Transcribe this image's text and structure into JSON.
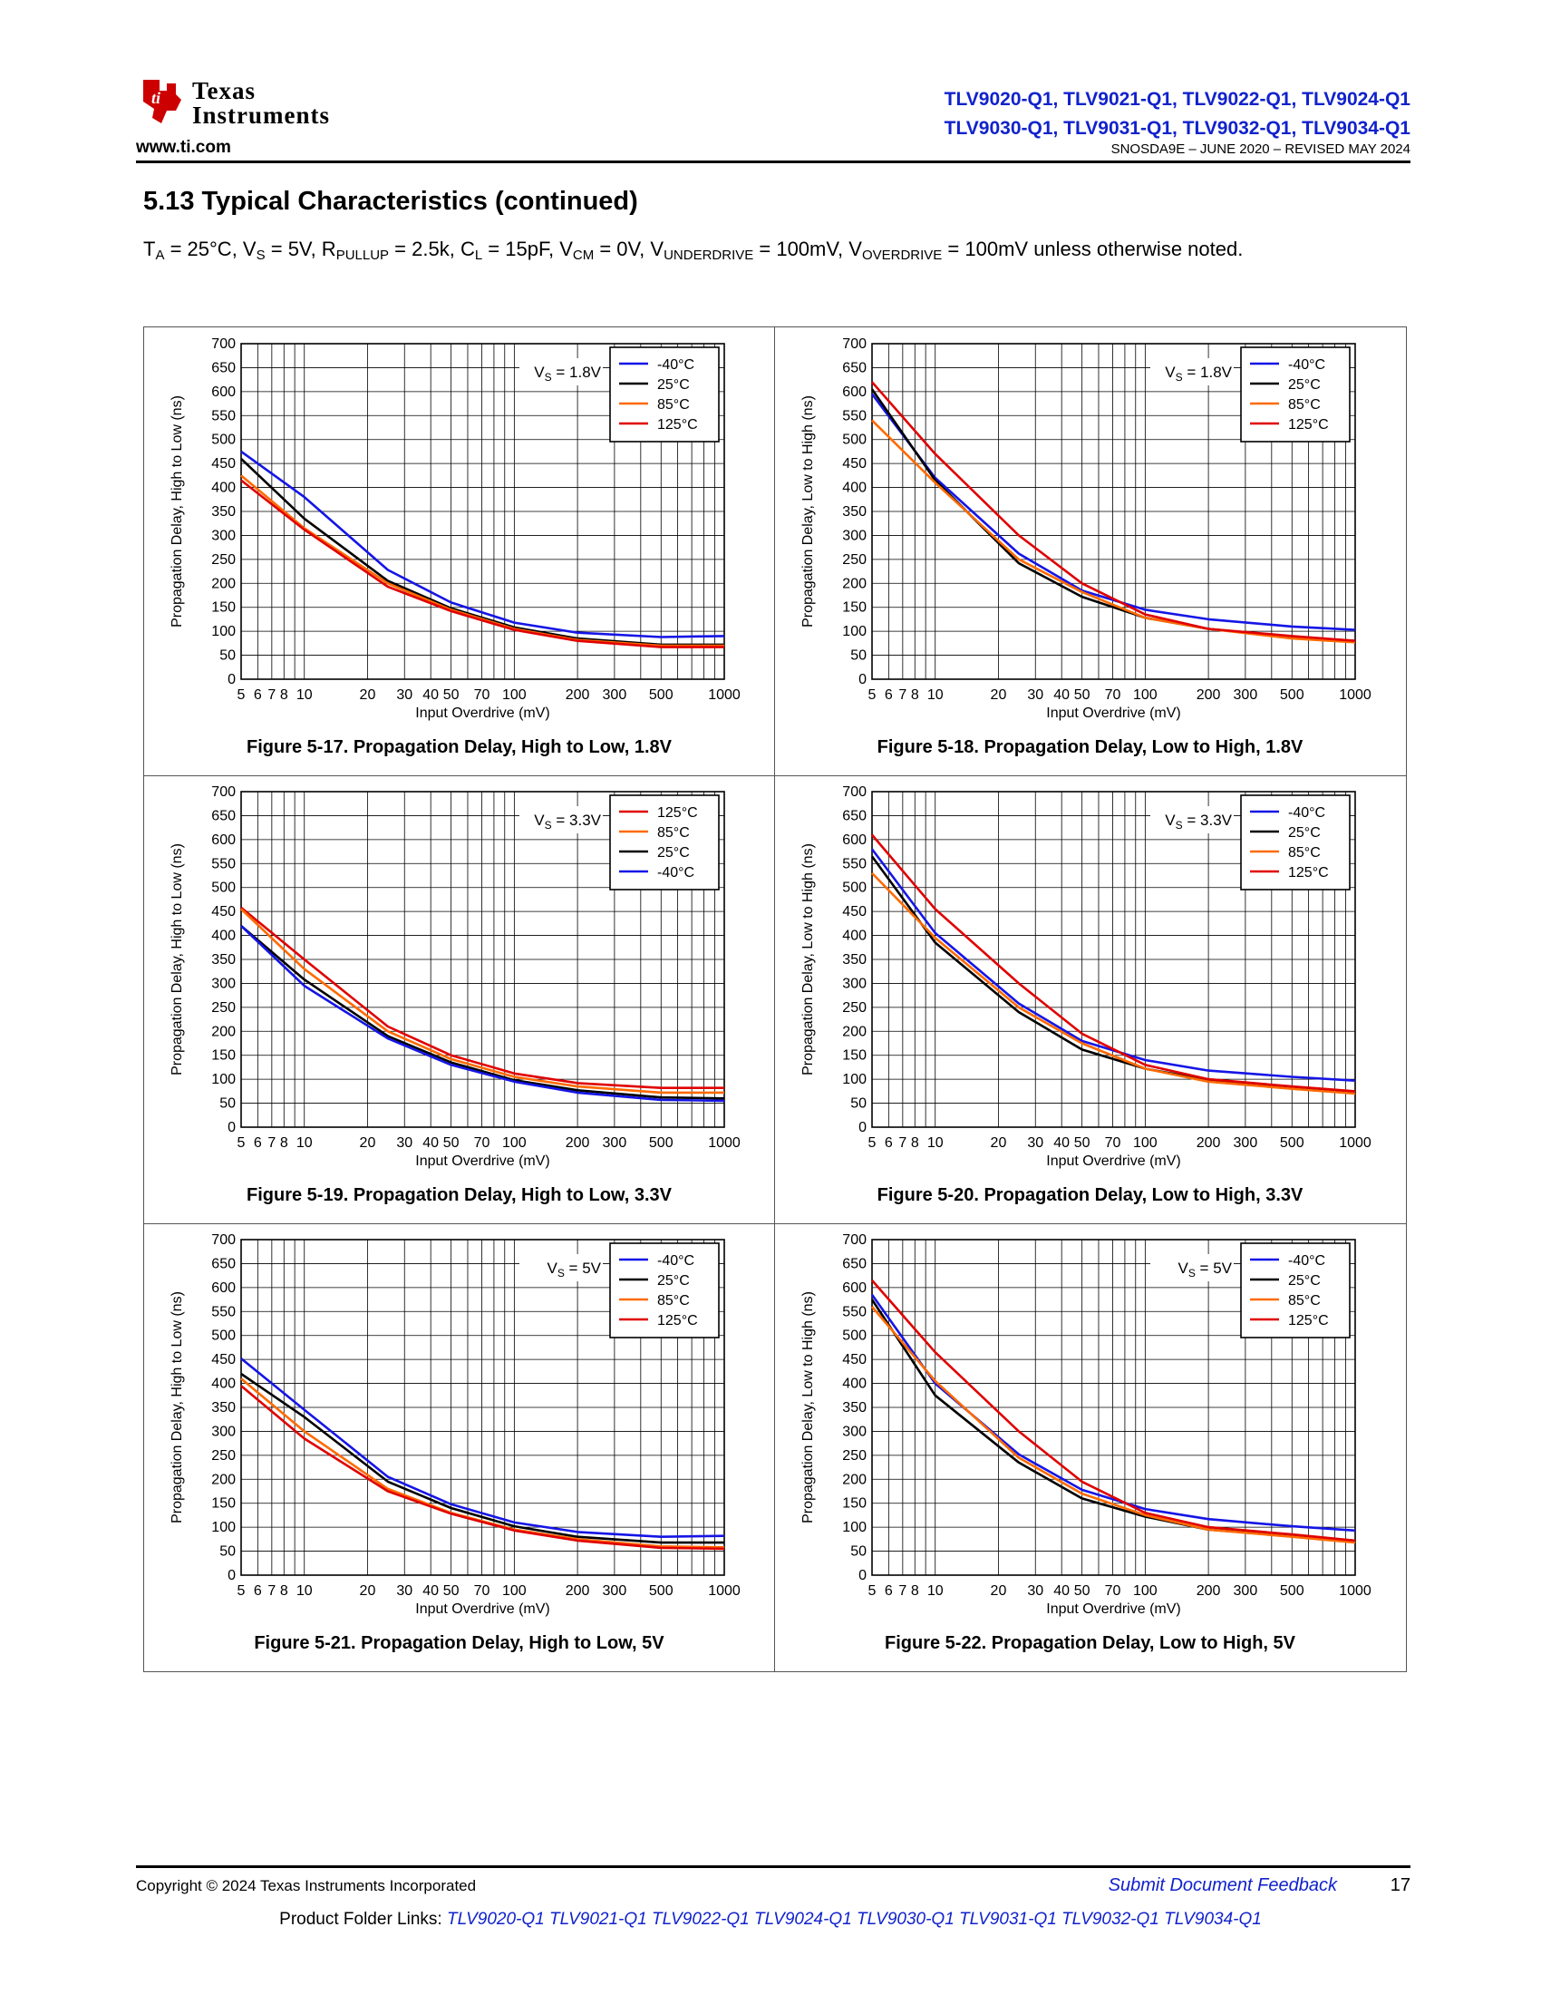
{
  "header": {
    "logo_line1": "Texas",
    "logo_line2": "Instruments",
    "website": "www.ti.com",
    "part_line1": "TLV9020-Q1, TLV9021-Q1, TLV9022-Q1, TLV9024-Q1",
    "part_line2": "TLV9030-Q1, TLV9031-Q1, TLV9032-Q1, TLV9034-Q1",
    "doc_id": "SNOSDA9E – JUNE 2020 – REVISED MAY 2024"
  },
  "section": {
    "title": "5.13 Typical Characteristics (continued)",
    "conditions": {
      "ta": "T",
      "ta_sub": "A",
      "ta_val": " = 25°C, V",
      "vs_sub": "S",
      "vs_val": " = 5V, R",
      "rp_sub": "PULLUP",
      "rp_val": " = 2.5k, C",
      "cl_sub": "L",
      "cl_val": " = 15pF, V",
      "vcm_sub": "CM",
      "vcm_val": " = 0V, V",
      "vu_sub": "UNDERDRIVE",
      "vu_val": " = 100mV, V",
      "vo_sub": "OVERDRIVE",
      "vo_val": " = 100mV unless otherwise noted."
    }
  },
  "colors": {
    "-40°C": "#1515e6",
    "25°C": "#000000",
    "85°C": "#ff6a00",
    "125°C": "#e00000"
  },
  "x_ticks": [
    {
      "v": 5,
      "label": "5"
    },
    {
      "v": 6,
      "label": "6"
    },
    {
      "v": 7,
      "label": "7"
    },
    {
      "v": 8,
      "label": "8"
    },
    {
      "v": 10,
      "label": "10"
    },
    {
      "v": 20,
      "label": "20"
    },
    {
      "v": 30,
      "label": "30"
    },
    {
      "v": 40,
      "label": "40"
    },
    {
      "v": 50,
      "label": "50"
    },
    {
      "v": 70,
      "label": "70"
    },
    {
      "v": 100,
      "label": "100"
    },
    {
      "v": 200,
      "label": "200"
    },
    {
      "v": 300,
      "label": "300"
    },
    {
      "v": 500,
      "label": "500"
    },
    {
      "v": 1000,
      "label": "1000"
    }
  ],
  "chart_data": [
    {
      "type": "line",
      "figure": "Figure 5-17. Propagation Delay, High to Low, 1.8V",
      "annotation": "VS = 1.8V",
      "annotation_base": "V",
      "annotation_sub": "S",
      "annotation_rest": " = 1.8V",
      "xlabel": "Input Overdrive (mV)",
      "ylabel": "Propagation Delay, High to Low (ns)",
      "xscale": "log",
      "xlim": [
        5,
        1000
      ],
      "ylim": [
        0,
        700
      ],
      "yticks": [
        0,
        50,
        100,
        150,
        200,
        250,
        300,
        350,
        400,
        450,
        500,
        550,
        600,
        650,
        700
      ],
      "grid": true,
      "legend_position": "top-right",
      "x": [
        5,
        10,
        25,
        50,
        100,
        200,
        500,
        1000
      ],
      "series": [
        {
          "name": "-40°C",
          "values": [
            475,
            380,
            228,
            160,
            118,
            97,
            88,
            90
          ]
        },
        {
          "name": "25°C",
          "values": [
            460,
            335,
            205,
            148,
            108,
            85,
            72,
            72
          ]
        },
        {
          "name": "85°C",
          "values": [
            425,
            315,
            200,
            145,
            105,
            82,
            70,
            70
          ]
        },
        {
          "name": "125°C",
          "values": [
            415,
            312,
            193,
            142,
            103,
            80,
            67,
            67
          ]
        }
      ]
    },
    {
      "type": "line",
      "figure": "Figure 5-18. Propagation Delay, Low to High, 1.8V",
      "annotation": "VS = 1.8V",
      "annotation_base": "V",
      "annotation_sub": "S",
      "annotation_rest": " = 1.8V",
      "xlabel": "Input Overdrive (mV)",
      "ylabel": "Propagation Delay, Low to High (ns)",
      "xscale": "log",
      "xlim": [
        5,
        1000
      ],
      "ylim": [
        0,
        700
      ],
      "yticks": [
        0,
        50,
        100,
        150,
        200,
        250,
        300,
        350,
        400,
        450,
        500,
        550,
        600,
        650,
        700
      ],
      "grid": true,
      "legend_position": "top-right",
      "x": [
        5,
        10,
        25,
        50,
        100,
        200,
        500,
        1000
      ],
      "series": [
        {
          "name": "-40°C",
          "values": [
            595,
            420,
            262,
            185,
            145,
            125,
            110,
            103
          ]
        },
        {
          "name": "25°C",
          "values": [
            605,
            415,
            242,
            172,
            128,
            105,
            88,
            80
          ]
        },
        {
          "name": "85°C",
          "values": [
            540,
            410,
            250,
            182,
            128,
            105,
            85,
            77
          ]
        },
        {
          "name": "125°C",
          "values": [
            620,
            470,
            300,
            200,
            135,
            105,
            90,
            80
          ]
        }
      ]
    },
    {
      "type": "line",
      "figure": "Figure 5-19. Propagation Delay, High to Low, 3.3V",
      "annotation": "VS = 3.3V",
      "annotation_base": "V",
      "annotation_sub": "S",
      "annotation_rest": " = 3.3V",
      "xlabel": "Input Overdrive (mV)",
      "ylabel": "Propagation Delay, High to Low (ns)",
      "xscale": "log",
      "xlim": [
        5,
        1000
      ],
      "ylim": [
        0,
        700
      ],
      "yticks": [
        0,
        50,
        100,
        150,
        200,
        250,
        300,
        350,
        400,
        450,
        500,
        550,
        600,
        650,
        700
      ],
      "grid": true,
      "legend_position": "top-right",
      "x": [
        5,
        10,
        25,
        50,
        100,
        200,
        500,
        1000
      ],
      "series": [
        {
          "name": "125°C",
          "values": [
            458,
            350,
            210,
            150,
            112,
            92,
            82,
            82
          ]
        },
        {
          "name": "85°C",
          "values": [
            455,
            330,
            200,
            142,
            105,
            85,
            72,
            72
          ]
        },
        {
          "name": "25°C",
          "values": [
            420,
            308,
            190,
            135,
            98,
            77,
            62,
            60
          ]
        },
        {
          "name": "-40°C",
          "values": [
            420,
            295,
            185,
            130,
            95,
            72,
            57,
            55
          ]
        }
      ]
    },
    {
      "type": "line",
      "figure": "Figure 5-20. Propagation Delay, Low to High, 3.3V",
      "annotation": "VS = 3.3V",
      "annotation_base": "V",
      "annotation_sub": "S",
      "annotation_rest": " = 3.3V",
      "xlabel": "Input Overdrive (mV)",
      "ylabel": "Propagation Delay, Low to High (ns)",
      "xscale": "log",
      "xlim": [
        5,
        1000
      ],
      "ylim": [
        0,
        700
      ],
      "yticks": [
        0,
        50,
        100,
        150,
        200,
        250,
        300,
        350,
        400,
        450,
        500,
        550,
        600,
        650,
        700
      ],
      "grid": true,
      "legend_position": "top-right",
      "x": [
        5,
        10,
        25,
        50,
        100,
        200,
        500,
        1000
      ],
      "series": [
        {
          "name": "-40°C",
          "values": [
            580,
            405,
            258,
            180,
            140,
            118,
            105,
            97
          ]
        },
        {
          "name": "25°C",
          "values": [
            565,
            385,
            240,
            162,
            122,
            98,
            82,
            73
          ]
        },
        {
          "name": "85°C",
          "values": [
            530,
            395,
            250,
            175,
            122,
            95,
            80,
            70
          ]
        },
        {
          "name": "125°C",
          "values": [
            610,
            455,
            300,
            195,
            130,
            100,
            85,
            75
          ]
        }
      ]
    },
    {
      "type": "line",
      "figure": "Figure 5-21. Propagation Delay, High to Low, 5V",
      "annotation": "VS = 5V",
      "annotation_base": "V",
      "annotation_sub": "S",
      "annotation_rest": " = 5V",
      "xlabel": "Input Overdrive (mV)",
      "ylabel": "Propagation Delay, High to Low (ns)",
      "xscale": "log",
      "xlim": [
        5,
        1000
      ],
      "ylim": [
        0,
        700
      ],
      "yticks": [
        0,
        50,
        100,
        150,
        200,
        250,
        300,
        350,
        400,
        450,
        500,
        550,
        600,
        650,
        700
      ],
      "grid": true,
      "legend_position": "top-right",
      "x": [
        5,
        10,
        25,
        50,
        100,
        200,
        500,
        1000
      ],
      "series": [
        {
          "name": "-40°C",
          "values": [
            452,
            345,
            205,
            148,
            110,
            90,
            80,
            82
          ]
        },
        {
          "name": "25°C",
          "values": [
            420,
            330,
            195,
            140,
            102,
            80,
            68,
            68
          ]
        },
        {
          "name": "85°C",
          "values": [
            410,
            300,
            180,
            130,
            95,
            75,
            60,
            58
          ]
        },
        {
          "name": "125°C",
          "values": [
            395,
            285,
            175,
            128,
            93,
            72,
            57,
            55
          ]
        }
      ]
    },
    {
      "type": "line",
      "figure": "Figure 5-22. Propagation Delay, Low to High, 5V",
      "annotation": "VS = 5V",
      "annotation_base": "V",
      "annotation_sub": "S",
      "annotation_rest": " = 5V",
      "xlabel": "Input Overdrive (mV)",
      "ylabel": "Propagation Delay, Low to High (ns)",
      "xscale": "log",
      "xlim": [
        5,
        1000
      ],
      "ylim": [
        0,
        700
      ],
      "yticks": [
        0,
        50,
        100,
        150,
        200,
        250,
        300,
        350,
        400,
        450,
        500,
        550,
        600,
        650,
        700
      ],
      "grid": true,
      "legend_position": "top-right",
      "x": [
        5,
        10,
        25,
        50,
        100,
        200,
        500,
        1000
      ],
      "series": [
        {
          "name": "-40°C",
          "values": [
            585,
            400,
            252,
            178,
            138,
            117,
            102,
            93
          ]
        },
        {
          "name": "25°C",
          "values": [
            575,
            375,
            235,
            160,
            122,
            95,
            82,
            72
          ]
        },
        {
          "name": "85°C",
          "values": [
            560,
            405,
            245,
            170,
            125,
            95,
            80,
            68
          ]
        },
        {
          "name": "125°C",
          "values": [
            615,
            465,
            300,
            195,
            130,
            100,
            85,
            72
          ]
        }
      ]
    }
  ],
  "footer": {
    "copyright": "Copyright © 2024 Texas Instruments Incorporated",
    "feedback": "Submit Document Feedback",
    "page": "17",
    "links_label": "Product Folder Links: ",
    "links": "TLV9020-Q1 TLV9021-Q1 TLV9022-Q1 TLV9024-Q1 TLV9030-Q1 TLV9031-Q1 TLV9032-Q1 TLV9034-Q1"
  }
}
